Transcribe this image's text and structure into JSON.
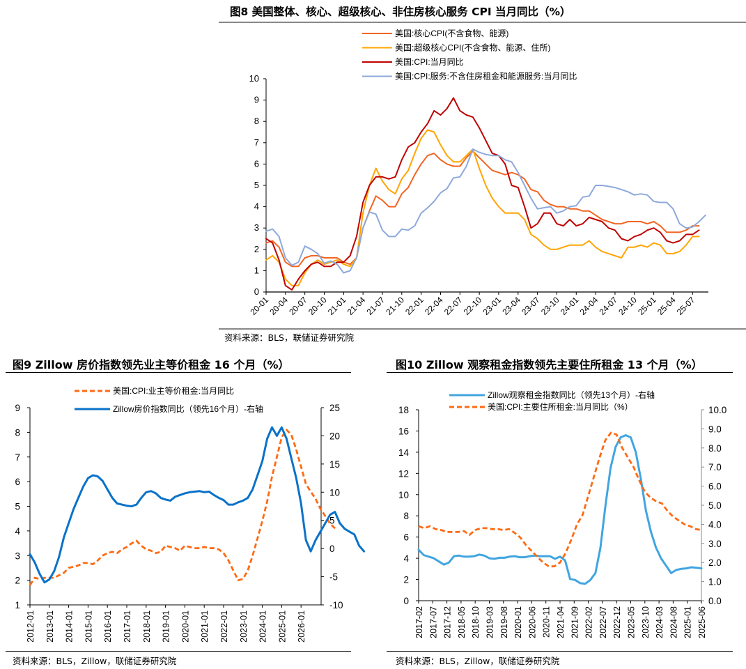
{
  "figures": [
    {
      "title": "图8  美国整体、核心、超级核心、非住房核心服务 CPI 当月同比（%）",
      "source": "资料来源：BLS，联储证券研究院"
    },
    {
      "title": "图9    Zillow 房价指数领先业主等价租金 16 个月（%）",
      "source": "资料来源：BLS，Zillow，联储证券研究院"
    },
    {
      "title": "图10  Zillow 观察租金指数领先主要住所租金 13 个月（%）",
      "source": "资料来源：BLS，Zillow，联储证券研究院"
    }
  ],
  "chart_data": [
    {
      "type": "line",
      "title": "图8  美国整体、核心、超级核心、非住房核心服务 CPI 当月同比（%）",
      "xlabel": "",
      "ylabel": "",
      "ylim": [
        0,
        10
      ],
      "yticks": [
        "0",
        "1",
        "2",
        "3",
        "4",
        "5",
        "6",
        "7",
        "8",
        "9",
        "10"
      ],
      "xticks": [
        "20-01",
        "20-04",
        "20-07",
        "20-10",
        "21-01",
        "21-04",
        "21-07",
        "21-10",
        "22-01",
        "22-04",
        "22-07",
        "22-10",
        "23-01",
        "23-04",
        "23-07",
        "23-10",
        "24-01",
        "24-04",
        "24-07",
        "24-10",
        "25-01",
        "25-04",
        "25-07"
      ],
      "x_start": "2020-01",
      "legend_placement": "top",
      "series": [
        {
          "name": "美国:核心CPI(不含食物、能源)",
          "color": "#F26522",
          "dash": false,
          "values": [
            2.3,
            2.4,
            2.1,
            1.4,
            1.2,
            1.2,
            1.6,
            1.7,
            1.7,
            1.6,
            1.6,
            1.6,
            1.4,
            1.3,
            1.6,
            3.0,
            3.8,
            4.5,
            4.3,
            4.0,
            4.0,
            4.6,
            4.9,
            5.5,
            6.0,
            6.4,
            6.5,
            6.2,
            6.0,
            5.9,
            5.9,
            6.3,
            6.6,
            6.3,
            6.0,
            5.7,
            5.6,
            5.5,
            5.6,
            5.5,
            5.3,
            4.8,
            4.7,
            4.3,
            4.1,
            4.0,
            4.0,
            3.9,
            3.9,
            3.8,
            3.8,
            3.6,
            3.4,
            3.3,
            3.2,
            3.2,
            3.3,
            3.3,
            3.3,
            3.2,
            3.3,
            3.1,
            2.8,
            2.8,
            2.8,
            2.9,
            3.1,
            3.1
          ]
        },
        {
          "name": "美国:超级核心CPI(不含食物、能源、住所)",
          "color": "#FFA500",
          "dash": false,
          "values": [
            1.5,
            1.7,
            1.4,
            0.6,
            0.3,
            0.3,
            0.9,
            1.3,
            1.5,
            1.3,
            1.4,
            1.5,
            1.3,
            1.2,
            1.6,
            3.7,
            5.0,
            5.8,
            5.2,
            4.8,
            4.6,
            5.3,
            5.7,
            6.5,
            7.2,
            7.6,
            7.5,
            6.9,
            6.4,
            6.1,
            6.1,
            6.4,
            6.7,
            5.8,
            5.0,
            4.4,
            4.0,
            3.7,
            3.7,
            3.7,
            3.4,
            2.7,
            2.5,
            2.2,
            2.0,
            2.0,
            2.1,
            2.2,
            2.2,
            2.2,
            2.4,
            2.1,
            1.9,
            1.8,
            1.7,
            1.6,
            2.1,
            2.1,
            2.2,
            2.1,
            2.3,
            2.2,
            1.8,
            1.8,
            1.9,
            2.2,
            2.6,
            2.6
          ]
        },
        {
          "name": "美国:CPI:当月同比",
          "color": "#C00000",
          "dash": false,
          "values": [
            2.5,
            2.3,
            1.5,
            0.3,
            0.1,
            0.6,
            1.0,
            1.3,
            1.4,
            1.2,
            1.2,
            1.4,
            1.4,
            1.7,
            2.6,
            4.2,
            5.0,
            5.4,
            5.4,
            5.3,
            5.4,
            6.2,
            6.8,
            7.0,
            7.5,
            7.9,
            8.5,
            8.3,
            8.6,
            9.1,
            8.5,
            8.3,
            8.2,
            7.7,
            7.1,
            6.5,
            6.4,
            6.0,
            5.0,
            4.9,
            4.0,
            3.0,
            3.2,
            3.7,
            3.7,
            3.2,
            3.1,
            3.4,
            3.1,
            3.2,
            3.5,
            3.4,
            3.3,
            3.0,
            2.9,
            2.5,
            2.4,
            2.6,
            2.7,
            2.9,
            3.0,
            2.8,
            2.4,
            2.3,
            2.4,
            2.7,
            2.7,
            2.9
          ]
        },
        {
          "name": "美国:CPI:服务:不含住房租金和能源服务:当月同比",
          "color": "#8EA9DB",
          "dash": false,
          "values": [
            2.85,
            2.95,
            2.6,
            1.6,
            1.25,
            1.4,
            2.15,
            2.0,
            1.8,
            1.35,
            1.45,
            1.3,
            0.9,
            1.0,
            1.6,
            3.0,
            3.75,
            3.65,
            2.9,
            2.6,
            2.6,
            2.95,
            2.9,
            3.1,
            3.7,
            3.95,
            4.25,
            4.65,
            4.85,
            5.35,
            5.4,
            5.9,
            6.7,
            6.55,
            6.45,
            6.4,
            6.4,
            6.2,
            6.1,
            5.6,
            5.0,
            4.4,
            3.9,
            3.95,
            4.0,
            3.7,
            3.8,
            4.0,
            4.05,
            4.45,
            4.5,
            5.0,
            5.0,
            4.95,
            4.9,
            4.8,
            4.7,
            4.55,
            4.6,
            4.55,
            4.25,
            4.2,
            4.2,
            3.9,
            3.2,
            3.0,
            3.05,
            3.3,
            3.6
          ]
        }
      ]
    },
    {
      "type": "line",
      "title": "图9    Zillow 房价指数领先业主等价租金 16 个月（%）",
      "xlabel": "",
      "ylabel": "",
      "ylim": [
        1,
        9
      ],
      "y2lim": [
        -10,
        25
      ],
      "yticks": [
        "1",
        "2",
        "3",
        "4",
        "5",
        "6",
        "7",
        "8",
        "9"
      ],
      "y2ticks": [
        "-10",
        "-5",
        "0",
        "5",
        "10",
        "15",
        "20",
        "25"
      ],
      "xticks": [
        "2012-01",
        "2013-01",
        "2014-01",
        "2015-01",
        "2016-01",
        "2017-01",
        "2018-01",
        "2019-01",
        "2020-01",
        "2021-01",
        "2022-01",
        "2023-01",
        "2024-01",
        "2025-01",
        "2026-01"
      ],
      "x_start": "2012-01",
      "x_step_months": 3,
      "legend_placement": "top",
      "series": [
        {
          "name": "美国:CPI:业主等价租金:当月同比",
          "color": "#FF6A13",
          "dash": true,
          "axis": "left",
          "values": [
            1.8,
            2.1,
            2.05,
            2.1,
            2.1,
            2.1,
            2.2,
            2.3,
            2.5,
            2.55,
            2.6,
            2.7,
            2.7,
            2.65,
            2.8,
            3.0,
            3.1,
            3.15,
            3.1,
            3.25,
            3.35,
            3.5,
            3.6,
            3.4,
            3.25,
            3.2,
            3.1,
            3.15,
            3.4,
            3.35,
            3.3,
            3.2,
            3.4,
            3.35,
            3.3,
            3.3,
            3.35,
            3.3,
            3.3,
            3.25,
            3.1,
            2.8,
            2.4,
            2.0,
            2.05,
            2.4,
            3.0,
            3.7,
            4.4,
            5.2,
            6.2,
            7.0,
            7.8,
            8.1,
            7.9,
            7.3,
            6.6,
            5.9,
            5.6,
            5.3,
            4.9,
            4.6,
            4.3,
            4.1
          ]
        },
        {
          "name": "Zillow房价指数同比（领先16个月）-右轴",
          "color": "#0A72C9",
          "dash": false,
          "axis": "right",
          "values": [
            -1.0,
            -2.5,
            -4.5,
            -6.0,
            -5.5,
            -4.0,
            -1.5,
            2.0,
            4.5,
            7.0,
            9.0,
            11.0,
            12.5,
            13.0,
            12.8,
            12.0,
            10.5,
            9.0,
            8.0,
            7.8,
            7.6,
            7.5,
            7.8,
            9.0,
            10.0,
            10.2,
            9.8,
            9.0,
            8.7,
            8.5,
            9.2,
            9.5,
            9.8,
            10.0,
            10.1,
            10.2,
            10.0,
            10.1,
            9.5,
            9.0,
            8.6,
            7.8,
            7.8,
            8.2,
            8.5,
            9.0,
            10.5,
            13.0,
            15.5,
            19.5,
            21.5,
            20.0,
            21.5,
            19.5,
            16.0,
            12.5,
            8.0,
            1.5,
            -0.5,
            1.5,
            3.0,
            4.5,
            6.0,
            6.5,
            4.5,
            3.5,
            3.0,
            2.5,
            0.5,
            -0.5
          ]
        }
      ]
    },
    {
      "type": "line",
      "title": "图10  Zillow 观察租金指数领先主要住所租金 13 个月（%）",
      "xlabel": "",
      "ylabel": "",
      "ylim": [
        0,
        18
      ],
      "y2lim": [
        0,
        10
      ],
      "yticks": [
        "0",
        "2",
        "4",
        "6",
        "8",
        "10",
        "12",
        "14",
        "16",
        "18"
      ],
      "y2ticks": [
        "0.0",
        "1.0",
        "2.0",
        "3.0",
        "4.0",
        "5.0",
        "6.0",
        "7.0",
        "8.0",
        "9.0",
        "10.0"
      ],
      "xticks": [
        "2017-02",
        "2017-07",
        "2017-12",
        "2018-05",
        "2018-10",
        "2019-03",
        "2019-08",
        "2020-01",
        "2020-06",
        "2020-11",
        "2021-04",
        "2021-09",
        "2022-02",
        "2022-07",
        "2022-12",
        "2023-05",
        "2023-10",
        "2024-03",
        "2024-08",
        "2025-01",
        "2025-06"
      ],
      "x_start": "2017-02",
      "x_step_months": 5,
      "legend_placement": "top",
      "series": [
        {
          "name": "Zillow观察租金指数同比（领先13个月）-右轴",
          "color": "#41A5E1",
          "dash": false,
          "axis": "left",
          "values": [
            4.8,
            4.3,
            4.15,
            4.0,
            3.7,
            3.4,
            3.6,
            4.2,
            4.25,
            4.15,
            4.15,
            4.2,
            4.35,
            4.25,
            4.0,
            3.95,
            4.05,
            4.05,
            4.15,
            4.2,
            4.1,
            4.1,
            4.2,
            4.25,
            4.2,
            4.2,
            4.2,
            3.95,
            4.15,
            3.8,
            2.05,
            1.95,
            1.65,
            1.6,
            1.95,
            2.6,
            5.0,
            9.0,
            12.5,
            14.5,
            15.4,
            15.6,
            15.4,
            14.0,
            11.5,
            8.5,
            6.5,
            5.0,
            4.0,
            3.3,
            2.6,
            2.9,
            3.0,
            3.05,
            3.15,
            3.1,
            3.05
          ]
        },
        {
          "name": "美国:CPI:主要住所租金:当月同比（%）",
          "color": "#FF6A13",
          "dash": true,
          "axis": "right",
          "values": [
            3.9,
            3.8,
            3.9,
            3.75,
            3.7,
            3.6,
            3.6,
            3.6,
            3.65,
            3.45,
            3.7,
            3.8,
            3.8,
            3.75,
            3.75,
            3.7,
            3.75,
            3.55,
            3.3,
            2.9,
            2.6,
            2.3,
            2.0,
            1.8,
            1.8,
            2.0,
            2.5,
            3.2,
            4.0,
            4.5,
            5.5,
            6.5,
            7.5,
            8.4,
            8.8,
            8.7,
            8.0,
            7.5,
            7.0,
            6.3,
            5.7,
            5.4,
            5.2,
            5.1,
            4.7,
            4.4,
            4.2,
            4.0,
            3.9,
            3.75,
            3.7
          ]
        }
      ]
    }
  ]
}
